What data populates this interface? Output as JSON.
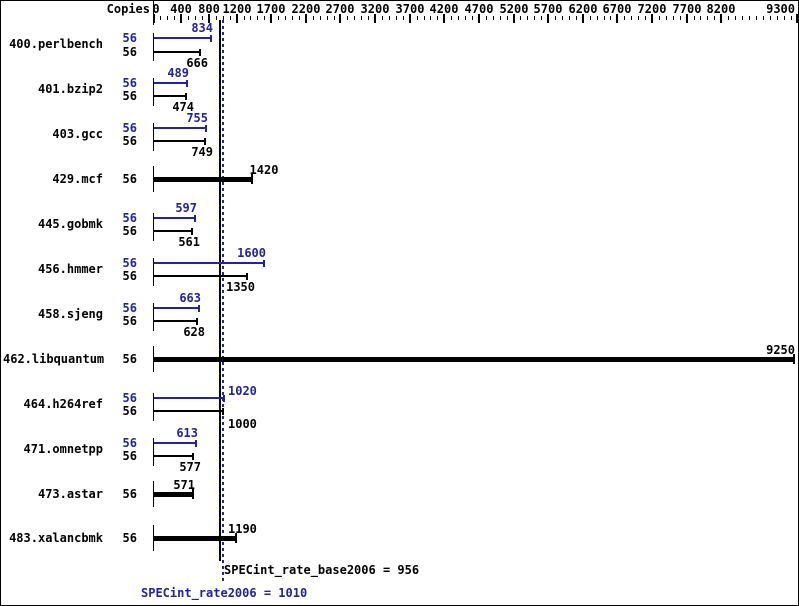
{
  "chart_data": {
    "type": "bar",
    "orientation": "horizontal",
    "copies_header": "Copies",
    "x_axis": {
      "min": 0,
      "max": 9300,
      "major_ticks": [
        0,
        400,
        800,
        1200,
        1700,
        2200,
        2700,
        3200,
        3700,
        4200,
        4700,
        5200,
        5700,
        6200,
        6700,
        7200,
        7700,
        8200,
        9300
      ],
      "minor_tick_step": 100,
      "grid": false
    },
    "legend": "none",
    "benchmarks": [
      {
        "name": "400.perlbench",
        "peak_copies": "56",
        "base_copies": "56",
        "peak": 834,
        "base": 666
      },
      {
        "name": "401.bzip2",
        "peak_copies": "56",
        "base_copies": "56",
        "peak": 489,
        "base": 474
      },
      {
        "name": "403.gcc",
        "peak_copies": "56",
        "base_copies": "56",
        "peak": 755,
        "base": 749
      },
      {
        "name": "429.mcf",
        "copies": "56",
        "value": 1420,
        "single": true,
        "label_layout": "center"
      },
      {
        "name": "445.gobmk",
        "peak_copies": "56",
        "base_copies": "56",
        "peak": 597,
        "base": 561
      },
      {
        "name": "456.hmmer",
        "peak_copies": "56",
        "base_copies": "56",
        "peak": 1600,
        "base": 1350
      },
      {
        "name": "458.sjeng",
        "peak_copies": "56",
        "base_copies": "56",
        "peak": 663,
        "base": 628
      },
      {
        "name": "462.libquantum",
        "copies": "56",
        "value": 9250,
        "single": true
      },
      {
        "name": "464.h264ref",
        "peak_copies": "56",
        "base_copies": "56",
        "peak": 1020,
        "base": 1000,
        "label_layout": "after-line"
      },
      {
        "name": "471.omnetpp",
        "peak_copies": "56",
        "base_copies": "56",
        "peak": 613,
        "base": 577
      },
      {
        "name": "473.astar",
        "copies": "56",
        "value": 571,
        "single": true
      },
      {
        "name": "483.xalancbmk",
        "copies": "56",
        "value": 1190,
        "single": true,
        "label_layout": "after-line"
      }
    ],
    "summary": {
      "base_text": "SPECint_rate_base2006 = 956",
      "base_value": 956,
      "peak_text": "SPECint_rate2006 = 1010",
      "peak_value": 1010
    },
    "colors": {
      "peak_blue": "#2222a2",
      "base_black": "#000000",
      "background": "#ffffff"
    }
  }
}
